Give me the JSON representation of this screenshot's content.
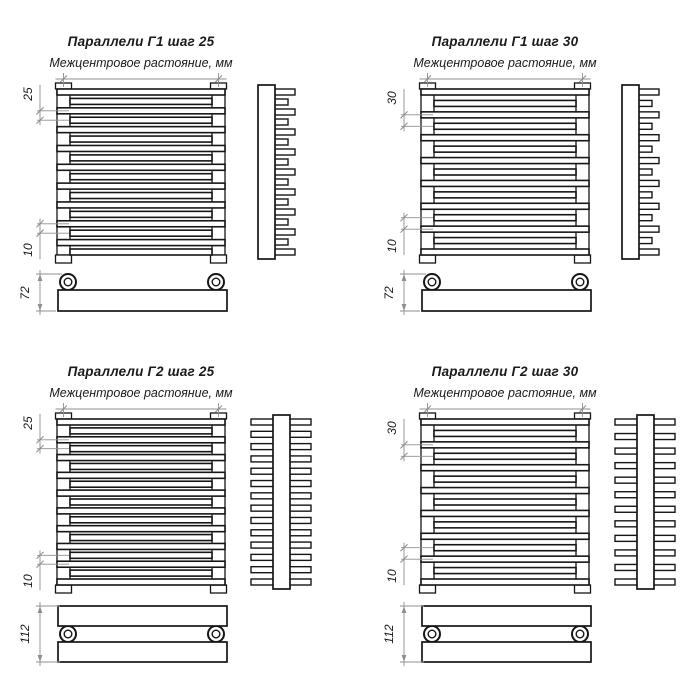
{
  "colors": {
    "background": "#ffffff",
    "object_line": "#161616",
    "dim_line": "#8f8f8f",
    "text": "#1b1b1b"
  },
  "diagrams": [
    {
      "id": "g1-step-25",
      "title": "Параллели Г1 шаг 25",
      "subtitle": "Межцентровое растояние, мм",
      "step_value": "25",
      "gap_value": "10",
      "depth_value": "72",
      "model": "Г1",
      "step_mm": 25,
      "tube_rows": 1,
      "front_bar_count": 18,
      "side_stub_count": 17
    },
    {
      "id": "g1-step-30",
      "title": "Параллели Г1 шаг 30",
      "subtitle": "Межцентровое растояние, мм",
      "step_value": "30",
      "gap_value": "10",
      "depth_value": "72",
      "model": "Г1",
      "step_mm": 30,
      "tube_rows": 1,
      "front_bar_count": 15,
      "side_stub_count": 15
    },
    {
      "id": "g2-step-25",
      "title": "Параллели Г2 шаг 25",
      "subtitle": "Межцентровое растояние, мм",
      "step_value": "25",
      "gap_value": "10",
      "depth_value": "112",
      "model": "Г2",
      "step_mm": 25,
      "tube_rows": 2,
      "front_bar_count": 19,
      "side_stub_count": 14
    },
    {
      "id": "g2-step-30",
      "title": "Параллели Г2 шаг 30",
      "subtitle": "Межцентровое растояние, мм",
      "step_value": "30",
      "gap_value": "10",
      "depth_value": "112",
      "model": "Г2",
      "step_mm": 30,
      "tube_rows": 2,
      "front_bar_count": 15,
      "side_stub_count": 12
    }
  ]
}
